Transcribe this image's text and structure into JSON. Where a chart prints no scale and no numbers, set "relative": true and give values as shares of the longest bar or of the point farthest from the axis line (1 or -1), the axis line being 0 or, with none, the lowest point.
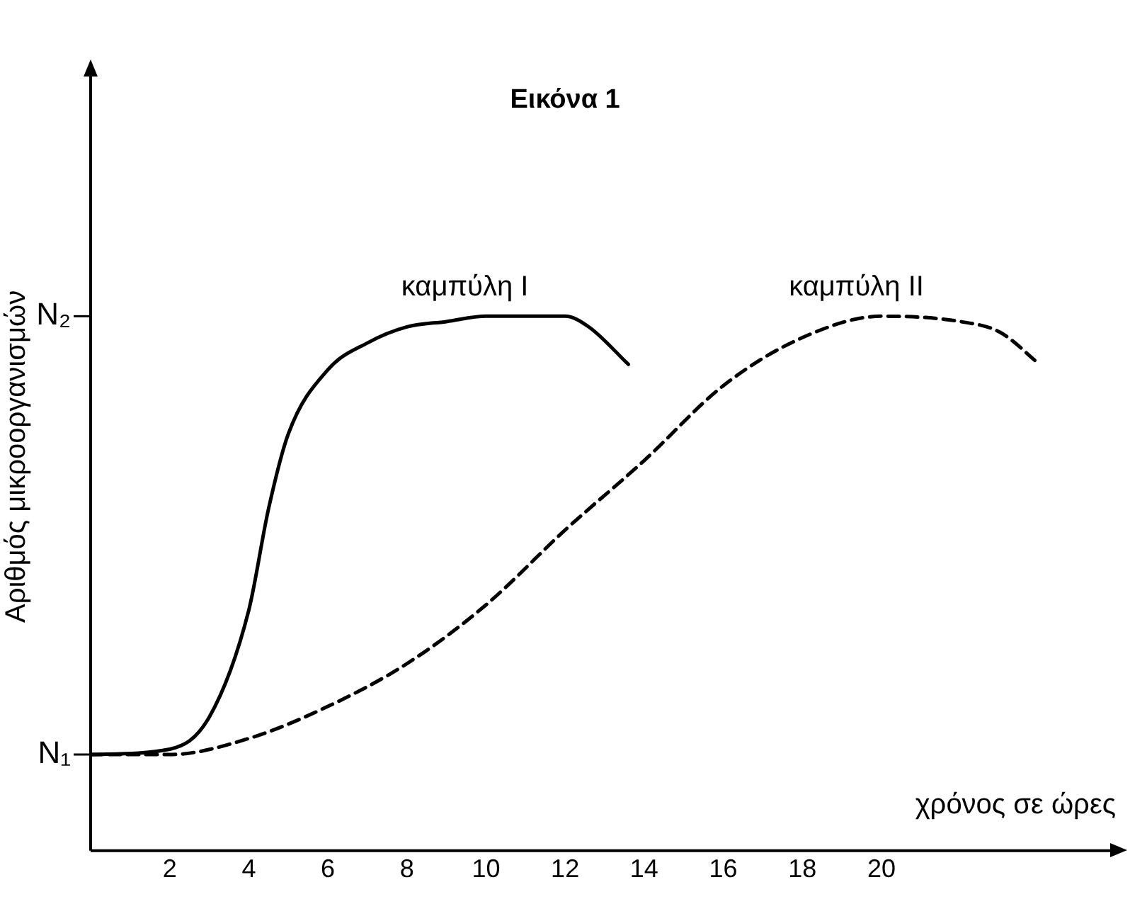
{
  "chart_data": {
    "type": "line",
    "title": "Εικόνα 1",
    "xlabel": "χρόνος σε ώρες",
    "ylabel": "Αριθμός μικροοργανισμών",
    "relative": true,
    "xlim": [
      0,
      26
    ],
    "xticks": [
      2,
      4,
      6,
      8,
      10,
      12,
      14,
      16,
      18,
      20
    ],
    "ref_lines": [
      {
        "axis": "y",
        "value": 0.18,
        "label": "N₁"
      },
      {
        "axis": "y",
        "value": 1,
        "label": "N₂"
      }
    ],
    "grid": false,
    "legend": false,
    "marker": "none",
    "series": [
      {
        "name": "καμπύλη I",
        "color": "#000000",
        "line_style": "solid",
        "x": [
          0,
          2,
          3,
          4,
          4.5,
          5,
          6,
          7,
          8,
          9,
          10,
          12,
          12.6,
          13.6
        ],
        "values": [
          0.18,
          0.19,
          0.25,
          0.45,
          0.64,
          0.78,
          0.9,
          0.95,
          0.98,
          0.99,
          1,
          1,
          0.98,
          0.91
        ]
      },
      {
        "name": "καμπύλη II",
        "color": "#000000",
        "line_style": "dashed",
        "x": [
          0,
          2,
          4,
          6,
          8,
          10,
          12,
          14,
          16,
          18,
          20,
          22,
          23,
          24
        ],
        "values": [
          0.18,
          0.18,
          0.21,
          0.27,
          0.35,
          0.46,
          0.6,
          0.73,
          0.87,
          0.96,
          1,
          0.99,
          0.97,
          0.91
        ]
      }
    ]
  }
}
